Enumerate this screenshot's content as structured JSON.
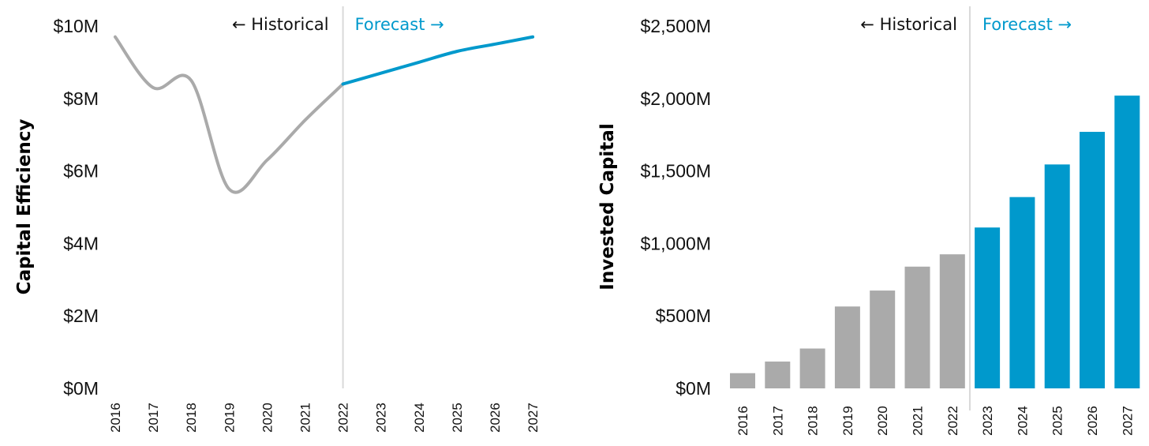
{
  "colors": {
    "historical": "#aaaaaa",
    "forecast": "#0099cc",
    "divider": "#d9d9d9",
    "text": "#111111"
  },
  "chart_data": [
    {
      "type": "line",
      "ylabel": "Capital Efficiency",
      "xlabel": "",
      "title": "",
      "x": [
        "2016",
        "2017",
        "2018",
        "2019",
        "2020",
        "2021",
        "2022",
        "2023",
        "2024",
        "2025",
        "2026",
        "2027"
      ],
      "y_tick_labels": [
        "$0M",
        "$2M",
        "$4M",
        "$6M",
        "$8M",
        "$10M"
      ],
      "ylim": [
        0,
        10
      ],
      "divider_at": "2022",
      "historical_label": "← Historical",
      "forecast_label": "Forecast →",
      "series": [
        {
          "segment": "historical",
          "x": [
            "2016",
            "2017",
            "2018",
            "2019",
            "2020",
            "2021",
            "2022"
          ],
          "values": [
            9.7,
            8.3,
            8.5,
            5.5,
            6.3,
            7.4,
            8.4
          ]
        },
        {
          "segment": "forecast",
          "x": [
            "2022",
            "2023",
            "2024",
            "2025",
            "2026",
            "2027"
          ],
          "values": [
            8.4,
            8.7,
            9.0,
            9.3,
            9.5,
            9.7
          ]
        }
      ]
    },
    {
      "type": "bar",
      "ylabel": "Invested Capital",
      "xlabel": "",
      "title": "",
      "categories": [
        "2016",
        "2017",
        "2018",
        "2019",
        "2020",
        "2021",
        "2022",
        "2023",
        "2024",
        "2025",
        "2026",
        "2027"
      ],
      "y_tick_labels": [
        "$0M",
        "$500M",
        "$1,000M",
        "$1,500M",
        "$2,000M",
        "$2,500M"
      ],
      "ylim": [
        0,
        2500
      ],
      "divider_after": "2022",
      "historical_label": "← Historical",
      "forecast_label": "Forecast →",
      "values": [
        105,
        185,
        275,
        565,
        675,
        840,
        925,
        1110,
        1320,
        1545,
        1770,
        2020
      ],
      "segments": [
        "historical",
        "historical",
        "historical",
        "historical",
        "historical",
        "historical",
        "historical",
        "forecast",
        "forecast",
        "forecast",
        "forecast",
        "forecast"
      ]
    }
  ]
}
